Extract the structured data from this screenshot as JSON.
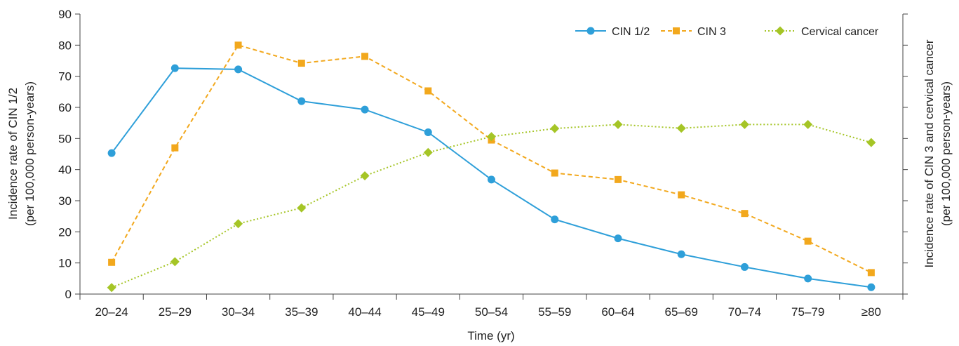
{
  "chart_data": {
    "type": "line",
    "title": "",
    "xlabel": "Time (yr)",
    "ylabel": [
      "Incidence rate of CIN 1/2",
      "(per 100,000 person-years)"
    ],
    "y2label": [
      "Incidence rate of CIN 3 and cervical cancer",
      "(per 100,000 person-years)"
    ],
    "ylim": [
      0,
      90
    ],
    "yticks": [
      0,
      10,
      20,
      30,
      40,
      50,
      60,
      70,
      80,
      90
    ],
    "grid": false,
    "legend_placement": "top-right",
    "categories": [
      "20–24",
      "25–29",
      "30–34",
      "35–39",
      "40–44",
      "45–49",
      "50–54",
      "55–59",
      "60–64",
      "65–69",
      "70–74",
      "75–79",
      "≥80"
    ],
    "series": [
      {
        "name": "CIN 1/2",
        "color": "#2e9fd9",
        "line_style": "solid",
        "marker": "circle",
        "values": [
          45.3,
          72.6,
          72.2,
          62.0,
          59.3,
          52.0,
          36.8,
          24.0,
          17.9,
          12.8,
          8.7,
          5.0,
          2.2
        ]
      },
      {
        "name": "CIN 3",
        "color": "#f2a81d",
        "line_style": "dashed",
        "marker": "square",
        "values": [
          10.2,
          47.0,
          80.0,
          74.2,
          76.4,
          65.3,
          49.5,
          38.9,
          36.8,
          31.9,
          25.9,
          17.0,
          6.9
        ]
      },
      {
        "name": "Cervical cancer",
        "color": "#a5c526",
        "line_style": "dotted",
        "marker": "diamond",
        "values": [
          2.1,
          10.4,
          22.6,
          27.7,
          38.0,
          45.5,
          50.6,
          53.2,
          54.5,
          53.3,
          54.5,
          54.5,
          48.7
        ]
      }
    ]
  }
}
